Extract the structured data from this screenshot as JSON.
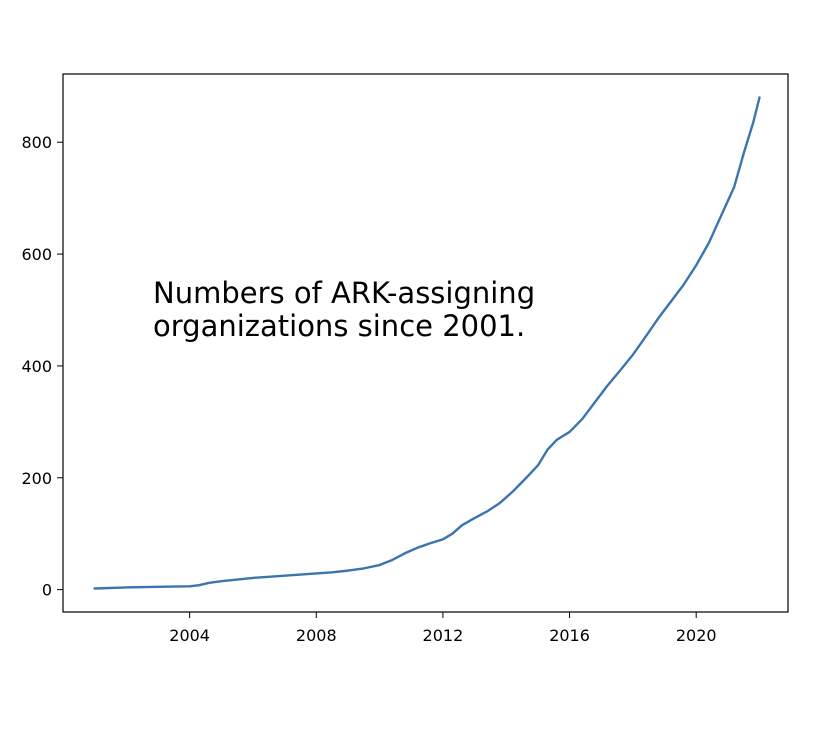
{
  "chart_data": {
    "type": "line",
    "title": "",
    "xlabel": "",
    "ylabel": "",
    "annotation_lines": [
      "Numbers of ARK-assigning",
      "organizations since 2001."
    ],
    "xlim": [
      2000.0,
      2022.9
    ],
    "ylim": [
      -40,
      922
    ],
    "x_ticks": [
      2004,
      2008,
      2012,
      2016,
      2020
    ],
    "y_ticks": [
      0,
      200,
      400,
      600,
      800
    ],
    "grid": false,
    "legend": "none",
    "series": [
      {
        "color": "#3b75af",
        "x": [
          2001.0,
          2002.0,
          2003.0,
          2004.0,
          2004.3,
          2004.6,
          2005.0,
          2005.5,
          2006.0,
          2006.5,
          2007.0,
          2007.5,
          2008.0,
          2008.5,
          2009.0,
          2009.5,
          2010.0,
          2010.4,
          2010.8,
          2011.2,
          2011.6,
          2012.0,
          2012.3,
          2012.6,
          2013.0,
          2013.4,
          2013.8,
          2014.2,
          2014.6,
          2015.0,
          2015.3,
          2015.6,
          2016.0,
          2016.4,
          2016.8,
          2017.2,
          2017.6,
          2018.0,
          2018.4,
          2018.8,
          2019.2,
          2019.6,
          2020.0,
          2020.4,
          2020.8,
          2021.2,
          2021.5,
          2021.8,
          2022.0
        ],
        "y": [
          2,
          4,
          5,
          6,
          8,
          12,
          15,
          18,
          21,
          23,
          25,
          27,
          29,
          31,
          34,
          38,
          44,
          53,
          65,
          75,
          83,
          90,
          100,
          115,
          128,
          140,
          155,
          175,
          198,
          222,
          250,
          268,
          282,
          305,
          335,
          365,
          392,
          420,
          452,
          485,
          515,
          545,
          580,
          620,
          670,
          720,
          780,
          835,
          880
        ]
      }
    ]
  }
}
